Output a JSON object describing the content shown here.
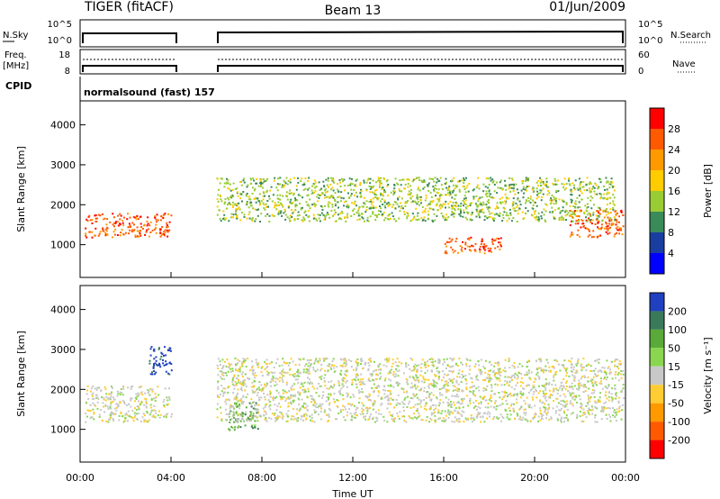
{
  "header": {
    "radar": "TIGER (fitACF)",
    "beam": "Beam 13",
    "date": "01/Jun/2009"
  },
  "sky_panel": {
    "left_label": "N.Sky",
    "right_label": "N.Search",
    "left_ticks": [
      "10^5",
      "10^0"
    ],
    "right_ticks": [
      "10^5",
      "10^0"
    ]
  },
  "freq_panel": {
    "left_label_line1": "Freq.",
    "left_label_line2": "[MHz]",
    "right_label": "Nave",
    "left_ticks": [
      "18",
      "8"
    ],
    "right_ticks": [
      "60",
      "0"
    ]
  },
  "cpid": {
    "label": "CPID",
    "value": "normalsound (fast) 157"
  },
  "chart_data": [
    {
      "type": "heatmap",
      "title": "",
      "parameter": "Power",
      "ylabel": "Slant Range [km]",
      "ylim": [
        180,
        4600
      ],
      "yticks": [
        "4000",
        "3000",
        "2000",
        "1000"
      ],
      "x_ticks": [
        "00:00",
        "04:00",
        "08:00",
        "12:00",
        "16:00",
        "20:00",
        "00:00"
      ],
      "xlim_hours": [
        0,
        24
      ],
      "data_gaps_hours": [
        [
          4.1,
          5.9
        ]
      ],
      "colorbar": {
        "label": "Power [dB]",
        "ticks": [
          "28",
          "24",
          "20",
          "16",
          "12",
          "8",
          "4"
        ],
        "colors": [
          "#ff0000",
          "#ff5a00",
          "#ff9900",
          "#ffcc00",
          "#99cc33",
          "#3a8a5a",
          "#1a3ea0",
          "#0000ff"
        ]
      },
      "features": [
        {
          "x_range_hours": [
            0.2,
            4.0
          ],
          "range_km": [
            1200,
            1800
          ],
          "power_db": 26
        },
        {
          "x_range_hours": [
            16.0,
            18.5
          ],
          "range_km": [
            800,
            1200
          ],
          "power_db": 24
        },
        {
          "x_range_hours": [
            21.5,
            23.9
          ],
          "range_km": [
            1200,
            1900
          ],
          "power_db": 26
        },
        {
          "x_range_hours": [
            6.0,
            23.5
          ],
          "range_km": [
            1600,
            2700
          ],
          "power_db": 12
        }
      ]
    },
    {
      "type": "heatmap",
      "title": "",
      "parameter": "Velocity",
      "ylabel": "Slant Range [km]",
      "ylim": [
        180,
        4600
      ],
      "yticks": [
        "4000",
        "3000",
        "2000",
        "1000"
      ],
      "x_ticks": [
        "00:00",
        "04:00",
        "08:00",
        "12:00",
        "16:00",
        "20:00",
        "00:00"
      ],
      "xlim_hours": [
        0,
        24
      ],
      "xlabel": "Time UT",
      "colorbar": {
        "label": "Velocity [m s⁻¹]",
        "ticks": [
          "200",
          "100",
          "50",
          "15",
          "-15",
          "-50",
          "-100",
          "-200"
        ],
        "colors": [
          "#2040c0",
          "#3a7a5a",
          "#5aaa3a",
          "#8ad650",
          "#c8c8c8",
          "#ffcc33",
          "#ff9900",
          "#ff5a00",
          "#ff0000"
        ]
      },
      "features": [
        {
          "x_range_hours": [
            0.2,
            4.0
          ],
          "range_km": [
            1200,
            2100
          ],
          "velocity_ms": 0
        },
        {
          "x_range_hours": [
            3.0,
            4.0
          ],
          "range_km": [
            2400,
            3100
          ],
          "velocity_ms": 200
        },
        {
          "x_range_hours": [
            6.5,
            7.8
          ],
          "range_km": [
            1000,
            1700
          ],
          "velocity_ms": 40
        },
        {
          "x_range_hours": [
            6.0,
            23.9
          ],
          "range_km": [
            1200,
            2800
          ],
          "velocity_ms": 0
        }
      ]
    }
  ]
}
